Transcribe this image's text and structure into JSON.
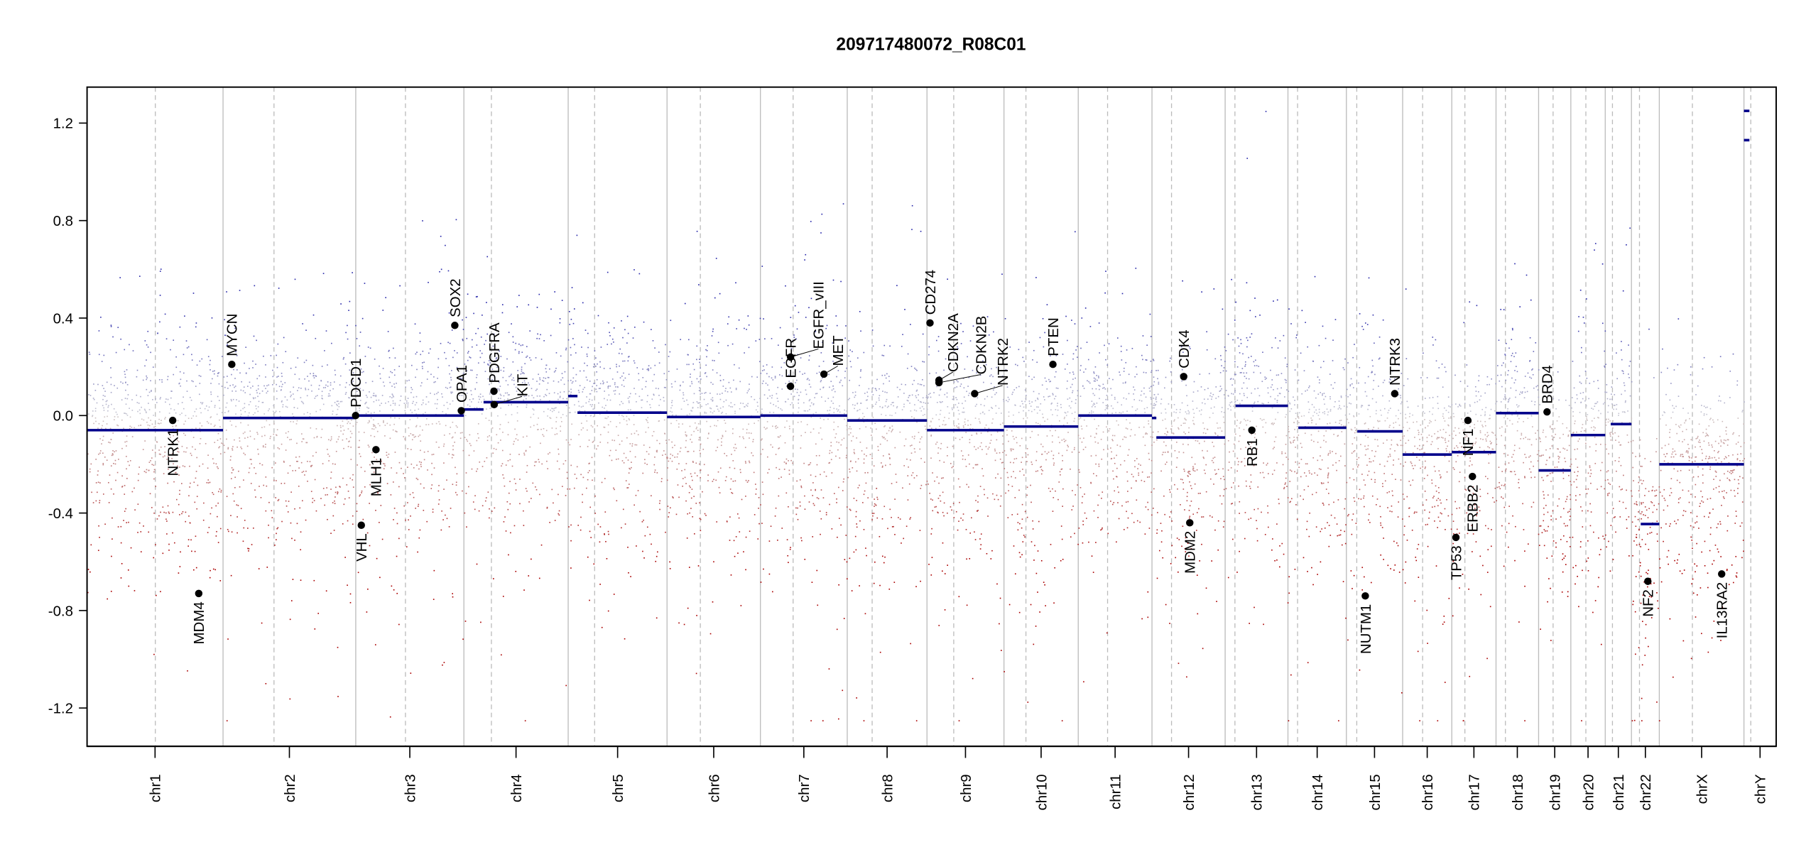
{
  "chart_data": {
    "type": "scatter",
    "title": "209717480072_R08C01",
    "xlabel": "",
    "ylabel": "",
    "ylim": [
      -1.35,
      1.35
    ],
    "yticks": [
      "1.2",
      "0.8",
      "0.4",
      "0.0",
      "-0.4",
      "-0.8",
      "-1.2"
    ],
    "ytick_values": [
      1.2,
      0.8,
      0.4,
      0.0,
      -0.4,
      -0.8,
      -1.2
    ],
    "grid": false,
    "colors": {
      "segment": "#00008b",
      "gain": "#2828aa",
      "neutral": "#c8c8d0",
      "loss": "#aa0000",
      "gene_point": "#000000",
      "boundary": "#bbbbbb",
      "centromere": "#bbbbbb"
    },
    "chromosomes": [
      {
        "name": "chr1",
        "length_mb": 249,
        "centromere_mb": 125,
        "segments": [
          [
            0,
            249,
            -0.06
          ]
        ]
      },
      {
        "name": "chr2",
        "length_mb": 243,
        "centromere_mb": 93.3,
        "segments": [
          [
            0,
            243,
            -0.01
          ]
        ]
      },
      {
        "name": "chr3",
        "length_mb": 198,
        "centromere_mb": 91,
        "segments": [
          [
            0,
            198,
            0.0
          ]
        ]
      },
      {
        "name": "chr4",
        "length_mb": 191,
        "centromere_mb": 50.4,
        "segments": [
          [
            0,
            36,
            0.025
          ],
          [
            36,
            191,
            0.055
          ]
        ]
      },
      {
        "name": "chr5",
        "length_mb": 181,
        "centromere_mb": 48.4,
        "segments": [
          [
            0,
            17,
            0.08
          ],
          [
            17,
            181,
            0.012
          ]
        ]
      },
      {
        "name": "chr6",
        "length_mb": 171,
        "centromere_mb": 61,
        "segments": [
          [
            0,
            171,
            -0.006
          ]
        ]
      },
      {
        "name": "chr7",
        "length_mb": 159,
        "centromere_mb": 59.9,
        "segments": [
          [
            0,
            159,
            0.0
          ]
        ]
      },
      {
        "name": "chr8",
        "length_mb": 146,
        "centromere_mb": 45.6,
        "segments": [
          [
            0,
            146,
            -0.02
          ]
        ]
      },
      {
        "name": "chr9",
        "length_mb": 141,
        "centromere_mb": 49,
        "segments": [
          [
            0,
            141,
            -0.06
          ]
        ]
      },
      {
        "name": "chr10",
        "length_mb": 136,
        "centromere_mb": 40.2,
        "segments": [
          [
            0,
            136,
            -0.045
          ]
        ]
      },
      {
        "name": "chr11",
        "length_mb": 135,
        "centromere_mb": 53.7,
        "segments": [
          [
            0,
            135,
            0.0
          ]
        ]
      },
      {
        "name": "chr12",
        "length_mb": 134,
        "centromere_mb": 35.8,
        "segments": [
          [
            0,
            8,
            -0.01
          ],
          [
            8,
            134,
            -0.09
          ]
        ]
      },
      {
        "name": "chr13",
        "length_mb": 115,
        "centromere_mb": 17.9,
        "segments": [
          [
            19,
            115,
            0.04
          ]
        ]
      },
      {
        "name": "chr14",
        "length_mb": 107,
        "centromere_mb": 17.6,
        "segments": [
          [
            19,
            107,
            -0.05
          ]
        ]
      },
      {
        "name": "chr15",
        "length_mb": 103,
        "centromere_mb": 19,
        "segments": [
          [
            20,
            103,
            -0.065
          ]
        ]
      },
      {
        "name": "chr16",
        "length_mb": 90,
        "centromere_mb": 36.6,
        "segments": [
          [
            0,
            90,
            -0.16
          ]
        ]
      },
      {
        "name": "chr17",
        "length_mb": 81,
        "centromere_mb": 24,
        "segments": [
          [
            0,
            81,
            -0.15
          ]
        ]
      },
      {
        "name": "chr18",
        "length_mb": 78,
        "centromere_mb": 17.2,
        "segments": [
          [
            0,
            78,
            0.01
          ]
        ]
      },
      {
        "name": "chr19",
        "length_mb": 59,
        "centromere_mb": 26.5,
        "segments": [
          [
            0,
            59,
            -0.225
          ]
        ]
      },
      {
        "name": "chr20",
        "length_mb": 63,
        "centromere_mb": 27.5,
        "segments": [
          [
            0,
            63,
            -0.08
          ]
        ]
      },
      {
        "name": "chr21",
        "length_mb": 48,
        "centromere_mb": 13.2,
        "segments": [
          [
            10,
            48,
            -0.035
          ]
        ]
      },
      {
        "name": "chr22",
        "length_mb": 51,
        "centromere_mb": 14.7,
        "segments": [
          [
            17,
            51,
            -0.445
          ]
        ]
      },
      {
        "name": "chrX",
        "length_mb": 155,
        "centromere_mb": 60.6,
        "segments": [
          [
            0,
            155,
            -0.2
          ]
        ]
      },
      {
        "name": "chrY",
        "length_mb": 59,
        "centromere_mb": 12.5,
        "segments": [
          [
            0,
            10,
            1.13
          ],
          [
            0,
            10,
            1.25
          ]
        ]
      }
    ],
    "genes": [
      {
        "name": "NTRK1",
        "chr": "chr1",
        "pos_mb": 156.8,
        "value": -0.02,
        "label": "below"
      },
      {
        "name": "MDM4",
        "chr": "chr1",
        "pos_mb": 204.5,
        "value": -0.73,
        "label": "below"
      },
      {
        "name": "MYCN",
        "chr": "chr2",
        "pos_mb": 16,
        "value": 0.21,
        "label": "above"
      },
      {
        "name": "PDCD1",
        "chr": "chr2",
        "pos_mb": 242.8,
        "value": 0.0,
        "label": "above"
      },
      {
        "name": "VHL",
        "chr": "chr3",
        "pos_mb": 10.2,
        "value": -0.45,
        "label": "below"
      },
      {
        "name": "MLH1",
        "chr": "chr3",
        "pos_mb": 37,
        "value": -0.14,
        "label": "below"
      },
      {
        "name": "SOX2",
        "chr": "chr3",
        "pos_mb": 181.4,
        "value": 0.37,
        "label": "above"
      },
      {
        "name": "OPA1",
        "chr": "chr3",
        "pos_mb": 193.3,
        "value": 0.02,
        "label": "above"
      },
      {
        "name": "PDGFRA",
        "chr": "chr4",
        "pos_mb": 55.1,
        "value": 0.1,
        "label": "above"
      },
      {
        "name": "KIT",
        "chr": "chr4",
        "pos_mb": 55.5,
        "value": 0.045,
        "label": "above"
      },
      {
        "name": "EGFR",
        "chr": "chr7",
        "pos_mb": 55.1,
        "value": 0.12,
        "label": "above"
      },
      {
        "name": "EGFR_vIII",
        "chr": "chr7",
        "pos_mb": 55.2,
        "value": 0.24,
        "label": "above"
      },
      {
        "name": "MET",
        "chr": "chr7",
        "pos_mb": 116.3,
        "value": 0.17,
        "label": "above"
      },
      {
        "name": "CD274",
        "chr": "chr9",
        "pos_mb": 5.5,
        "value": 0.38,
        "label": "above"
      },
      {
        "name": "CDKN2A",
        "chr": "chr9",
        "pos_mb": 21.97,
        "value": 0.145,
        "label": "above"
      },
      {
        "name": "CDKN2B",
        "chr": "chr9",
        "pos_mb": 22.0,
        "value": 0.135,
        "label": "above"
      },
      {
        "name": "NTRK2",
        "chr": "chr9",
        "pos_mb": 87.3,
        "value": 0.09,
        "label": "above"
      },
      {
        "name": "PTEN",
        "chr": "chr10",
        "pos_mb": 89.6,
        "value": 0.21,
        "label": "above"
      },
      {
        "name": "CDK4",
        "chr": "chr12",
        "pos_mb": 58.1,
        "value": 0.16,
        "label": "above"
      },
      {
        "name": "MDM2",
        "chr": "chr12",
        "pos_mb": 69.2,
        "value": -0.44,
        "label": "below"
      },
      {
        "name": "RB1",
        "chr": "chr13",
        "pos_mb": 48.9,
        "value": -0.06,
        "label": "below"
      },
      {
        "name": "NUTM1",
        "chr": "chr15",
        "pos_mb": 34.6,
        "value": -0.74,
        "label": "below"
      },
      {
        "name": "NTRK3",
        "chr": "chr15",
        "pos_mb": 88.5,
        "value": 0.09,
        "label": "above"
      },
      {
        "name": "TP53",
        "chr": "chr17",
        "pos_mb": 7.6,
        "value": -0.5,
        "label": "below"
      },
      {
        "name": "NF1",
        "chr": "chr17",
        "pos_mb": 29.5,
        "value": -0.02,
        "label": "below"
      },
      {
        "name": "ERBB2",
        "chr": "chr17",
        "pos_mb": 37.8,
        "value": -0.25,
        "label": "below"
      },
      {
        "name": "BRD4",
        "chr": "chr19",
        "pos_mb": 15.4,
        "value": 0.015,
        "label": "above"
      },
      {
        "name": "NF2",
        "chr": "chr22",
        "pos_mb": 30,
        "value": -0.68,
        "label": "below"
      },
      {
        "name": "IL13RA2",
        "chr": "chrX",
        "pos_mb": 114.2,
        "value": -0.65,
        "label": "below"
      }
    ]
  }
}
